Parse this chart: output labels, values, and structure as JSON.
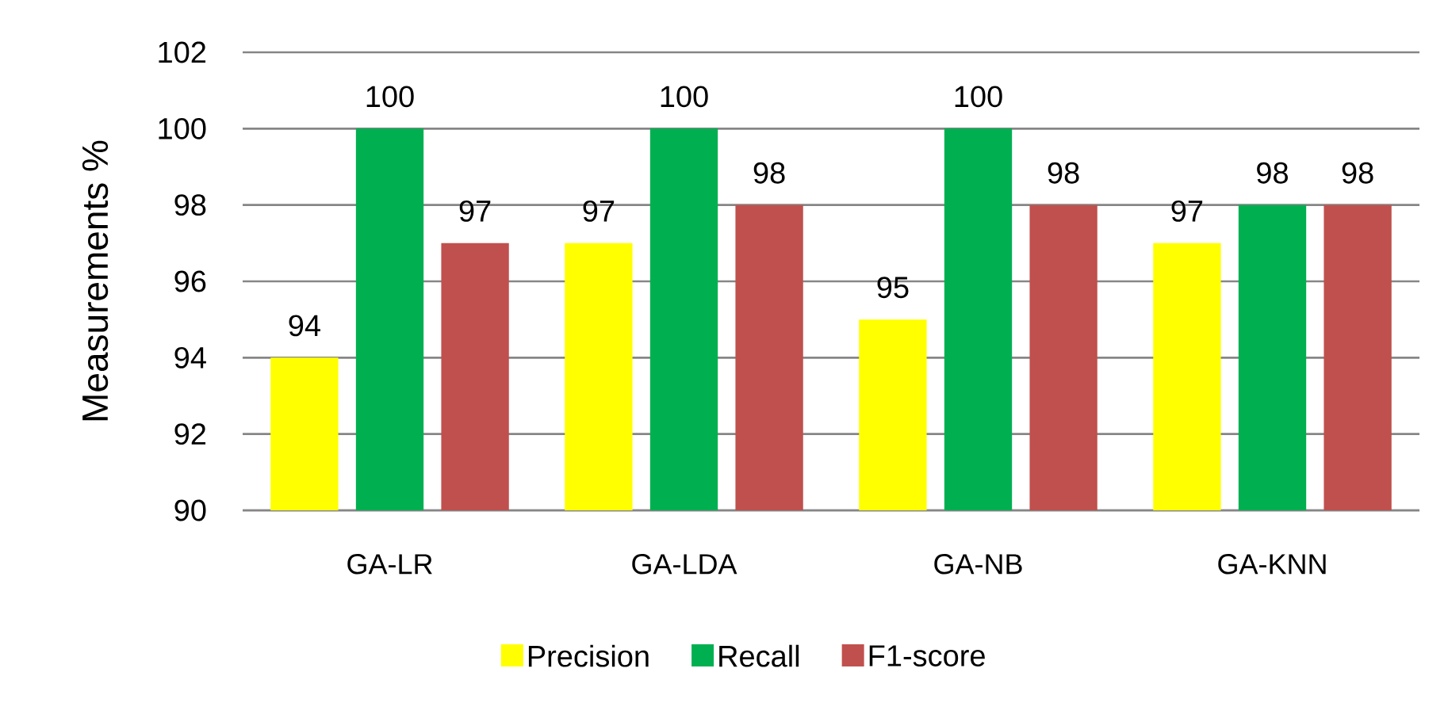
{
  "chart_data": {
    "type": "bar",
    "ylabel": "Measurements %",
    "categories": [
      "GA-LR",
      "GA-LDA",
      "GA-NB",
      "GA-KNN"
    ],
    "series": [
      {
        "name": "Precision",
        "color": "#ffff00",
        "values": [
          94,
          97,
          95,
          97
        ]
      },
      {
        "name": "Recall",
        "color": "#00b050",
        "values": [
          100,
          100,
          100,
          98
        ]
      },
      {
        "name": "F1-score",
        "color": "#c0504d",
        "values": [
          97,
          98,
          98,
          98
        ]
      }
    ],
    "ylim": [
      90,
      102
    ],
    "yticks": [
      90,
      92,
      94,
      96,
      98,
      100,
      102
    ],
    "grid": "y",
    "legend": "bottom",
    "data_labels": true
  }
}
